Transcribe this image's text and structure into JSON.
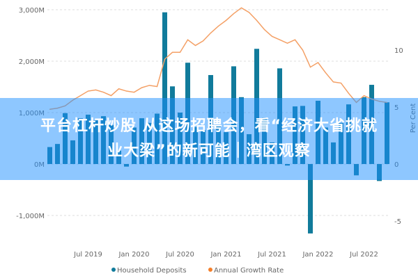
{
  "chart_data": {
    "type": "bar+line",
    "title": "",
    "categories": [
      "Feb 2019",
      "Mar 2019",
      "Apr 2019",
      "May 2019",
      "Jun 2019",
      "Jul 2019",
      "Aug 2019",
      "Sep 2019",
      "Oct 2019",
      "Nov 2019",
      "Dec 2019",
      "Jan 2020",
      "Feb 2020",
      "Mar 2020",
      "Apr 2020",
      "May 2020",
      "Jun 2020",
      "Jul 2020",
      "Aug 2020",
      "Sep 2020",
      "Oct 2020",
      "Nov 2020",
      "Dec 2020",
      "Jan 2021",
      "Feb 2021",
      "Mar 2021",
      "Apr 2021",
      "May 2021",
      "Jun 2021",
      "Jul 2021",
      "Aug 2021",
      "Sep 2021",
      "Oct 2021",
      "Nov 2021",
      "Dec 2021",
      "Jan 2022",
      "Feb 2022",
      "Mar 2022",
      "Apr 2022",
      "May 2022",
      "Jun 2022",
      "Jul 2022",
      "Aug 2022",
      "Sep 2022",
      "Oct 2022"
    ],
    "x_tick_labels": [
      "Jul 2019",
      "Jan 2020",
      "Jul 2020",
      "Jan 2021",
      "Jul 2021",
      "Jan 2022",
      "Jul 2022"
    ],
    "series": [
      {
        "name": "Household Deposits",
        "type": "bar",
        "axis": "left",
        "color": "#117b9b",
        "values": [
          330,
          390,
          990,
          460,
          890,
          960,
          850,
          930,
          760,
          260,
          -50,
          710,
          890,
          800,
          980,
          2950,
          1510,
          1000,
          1970,
          720,
          660,
          1730,
          760,
          620,
          1900,
          1300,
          580,
          2240,
          900,
          420,
          1860,
          -30,
          1120,
          1130,
          -1350,
          1230,
          710,
          420,
          800,
          1160,
          -220,
          1300,
          1540,
          -330,
          1200
        ]
      },
      {
        "name": "Annual Growth Rate",
        "type": "line",
        "axis": "right",
        "color": "#f4a066",
        "values": [
          4.8,
          4.9,
          5.1,
          5.6,
          6.0,
          6.4,
          6.5,
          6.3,
          6.0,
          6.6,
          6.4,
          6.3,
          6.7,
          6.9,
          6.8,
          9.2,
          9.8,
          9.8,
          10.9,
          10.4,
          10.8,
          11.5,
          12.1,
          12.6,
          13.2,
          13.7,
          13.3,
          12.6,
          11.8,
          11.2,
          10.9,
          10.6,
          10.9,
          10.0,
          8.5,
          8.9,
          8.0,
          7.2,
          7.1,
          6.2,
          5.4,
          6.0,
          5.7,
          5.5,
          5.4
        ]
      }
    ],
    "y_left": {
      "ticks": [
        "3,000M",
        "2,000M",
        "1,000M",
        "0M",
        "-1,000M"
      ],
      "tick_values": [
        3000,
        2000,
        1000,
        0,
        -1000
      ],
      "range": [
        -1350,
        3100
      ]
    },
    "y_right": {
      "label": "Per Cent",
      "ticks": [
        "10",
        "5",
        "0",
        "-5"
      ],
      "tick_values": [
        10,
        5,
        0,
        -5
      ]
    },
    "grid": "horizontal dashed",
    "legend_position": "bottom"
  },
  "banner": {
    "line1": "平台杠杆炒股 从这场招聘会，看“经济大省挑就",
    "line2": "业大梁”的新可能｜湾区观察",
    "color": "#1e90ff"
  }
}
